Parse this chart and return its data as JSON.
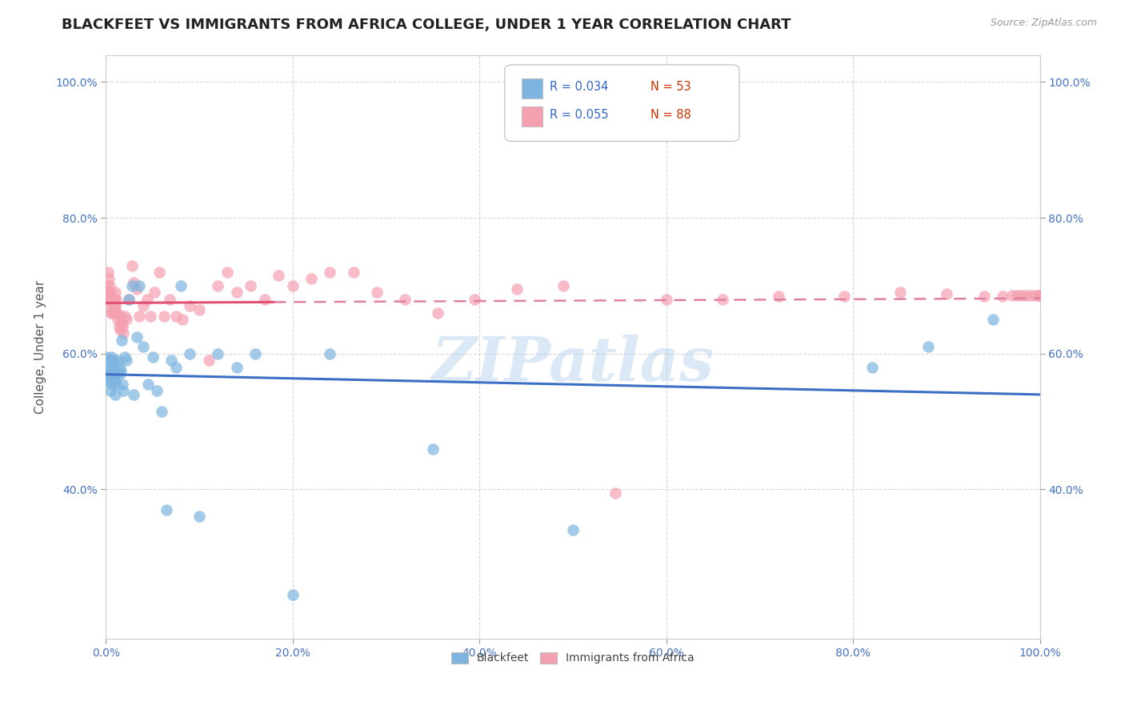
{
  "title": "BLACKFEET VS IMMIGRANTS FROM AFRICA COLLEGE, UNDER 1 YEAR CORRELATION CHART",
  "source": "Source: ZipAtlas.com",
  "ylabel": "College, Under 1 year",
  "blackfeet_x": [
    0.001,
    0.002,
    0.003,
    0.004,
    0.004,
    0.005,
    0.005,
    0.006,
    0.006,
    0.007,
    0.007,
    0.008,
    0.008,
    0.009,
    0.01,
    0.01,
    0.011,
    0.012,
    0.013,
    0.014,
    0.015,
    0.016,
    0.017,
    0.018,
    0.019,
    0.02,
    0.022,
    0.025,
    0.028,
    0.03,
    0.033,
    0.036,
    0.04,
    0.045,
    0.05,
    0.055,
    0.06,
    0.065,
    0.07,
    0.075,
    0.08,
    0.09,
    0.1,
    0.12,
    0.14,
    0.16,
    0.2,
    0.24,
    0.35,
    0.5,
    0.82,
    0.88,
    0.95
  ],
  "blackfeet_y": [
    0.595,
    0.575,
    0.56,
    0.58,
    0.57,
    0.56,
    0.545,
    0.595,
    0.59,
    0.555,
    0.57,
    0.59,
    0.585,
    0.575,
    0.54,
    0.56,
    0.555,
    0.57,
    0.59,
    0.58,
    0.57,
    0.575,
    0.62,
    0.555,
    0.545,
    0.595,
    0.59,
    0.68,
    0.7,
    0.54,
    0.625,
    0.7,
    0.61,
    0.555,
    0.595,
    0.545,
    0.515,
    0.37,
    0.59,
    0.58,
    0.7,
    0.6,
    0.36,
    0.6,
    0.58,
    0.6,
    0.245,
    0.6,
    0.46,
    0.34,
    0.58,
    0.61,
    0.65
  ],
  "africa_x": [
    0.001,
    0.001,
    0.002,
    0.002,
    0.003,
    0.003,
    0.004,
    0.004,
    0.005,
    0.005,
    0.006,
    0.006,
    0.007,
    0.007,
    0.008,
    0.008,
    0.009,
    0.009,
    0.01,
    0.01,
    0.011,
    0.011,
    0.012,
    0.013,
    0.014,
    0.015,
    0.016,
    0.017,
    0.018,
    0.019,
    0.02,
    0.022,
    0.025,
    0.028,
    0.03,
    0.033,
    0.036,
    0.04,
    0.044,
    0.048,
    0.052,
    0.057,
    0.062,
    0.068,
    0.075,
    0.082,
    0.09,
    0.1,
    0.11,
    0.12,
    0.13,
    0.14,
    0.155,
    0.17,
    0.185,
    0.2,
    0.22,
    0.24,
    0.265,
    0.29,
    0.32,
    0.355,
    0.395,
    0.44,
    0.49,
    0.545,
    0.6,
    0.66,
    0.72,
    0.79,
    0.85,
    0.9,
    0.94,
    0.96,
    0.97,
    0.975,
    0.98,
    0.985,
    0.99,
    0.995,
    1.0,
    1.0,
    1.0,
    1.0,
    1.0,
    1.0,
    1.0,
    1.0
  ],
  "africa_y": [
    0.7,
    0.68,
    0.72,
    0.69,
    0.71,
    0.69,
    0.7,
    0.68,
    0.69,
    0.67,
    0.68,
    0.66,
    0.68,
    0.66,
    0.68,
    0.67,
    0.68,
    0.67,
    0.69,
    0.67,
    0.68,
    0.66,
    0.66,
    0.65,
    0.64,
    0.635,
    0.655,
    0.645,
    0.64,
    0.63,
    0.655,
    0.65,
    0.68,
    0.73,
    0.705,
    0.695,
    0.655,
    0.67,
    0.68,
    0.655,
    0.69,
    0.72,
    0.655,
    0.68,
    0.655,
    0.65,
    0.67,
    0.665,
    0.59,
    0.7,
    0.72,
    0.69,
    0.7,
    0.68,
    0.715,
    0.7,
    0.71,
    0.72,
    0.72,
    0.69,
    0.68,
    0.66,
    0.68,
    0.695,
    0.7,
    0.395,
    0.68,
    0.68,
    0.685,
    0.685,
    0.69,
    0.688,
    0.685,
    0.685,
    0.686,
    0.686,
    0.686,
    0.686,
    0.686,
    0.686,
    0.686,
    0.686,
    0.686,
    0.686,
    0.686,
    0.686,
    0.686,
    0.686
  ],
  "blackfeet_R": 0.034,
  "blackfeet_N": 53,
  "africa_R": 0.055,
  "africa_N": 88,
  "blackfeet_color": "#7db5e0",
  "africa_color": "#f4a0b0",
  "blackfeet_line_color": "#3a6fc4",
  "africa_line_color_solid": "#e05070",
  "africa_line_color_dash": "#e080a0",
  "xlim": [
    0.0,
    1.0
  ],
  "ylim": [
    0.18,
    1.04
  ],
  "x_tick_vals": [
    0.0,
    0.2,
    0.4,
    0.6,
    0.8,
    1.0
  ],
  "y_tick_vals": [
    0.4,
    0.6,
    0.8,
    1.0
  ],
  "watermark": "ZIPatlas",
  "background_color": "#ffffff",
  "grid_color": "#cccccc",
  "title_fontsize": 13,
  "axis_label_fontsize": 11,
  "tick_fontsize": 10,
  "legend_box_color": "#aaaaaa"
}
